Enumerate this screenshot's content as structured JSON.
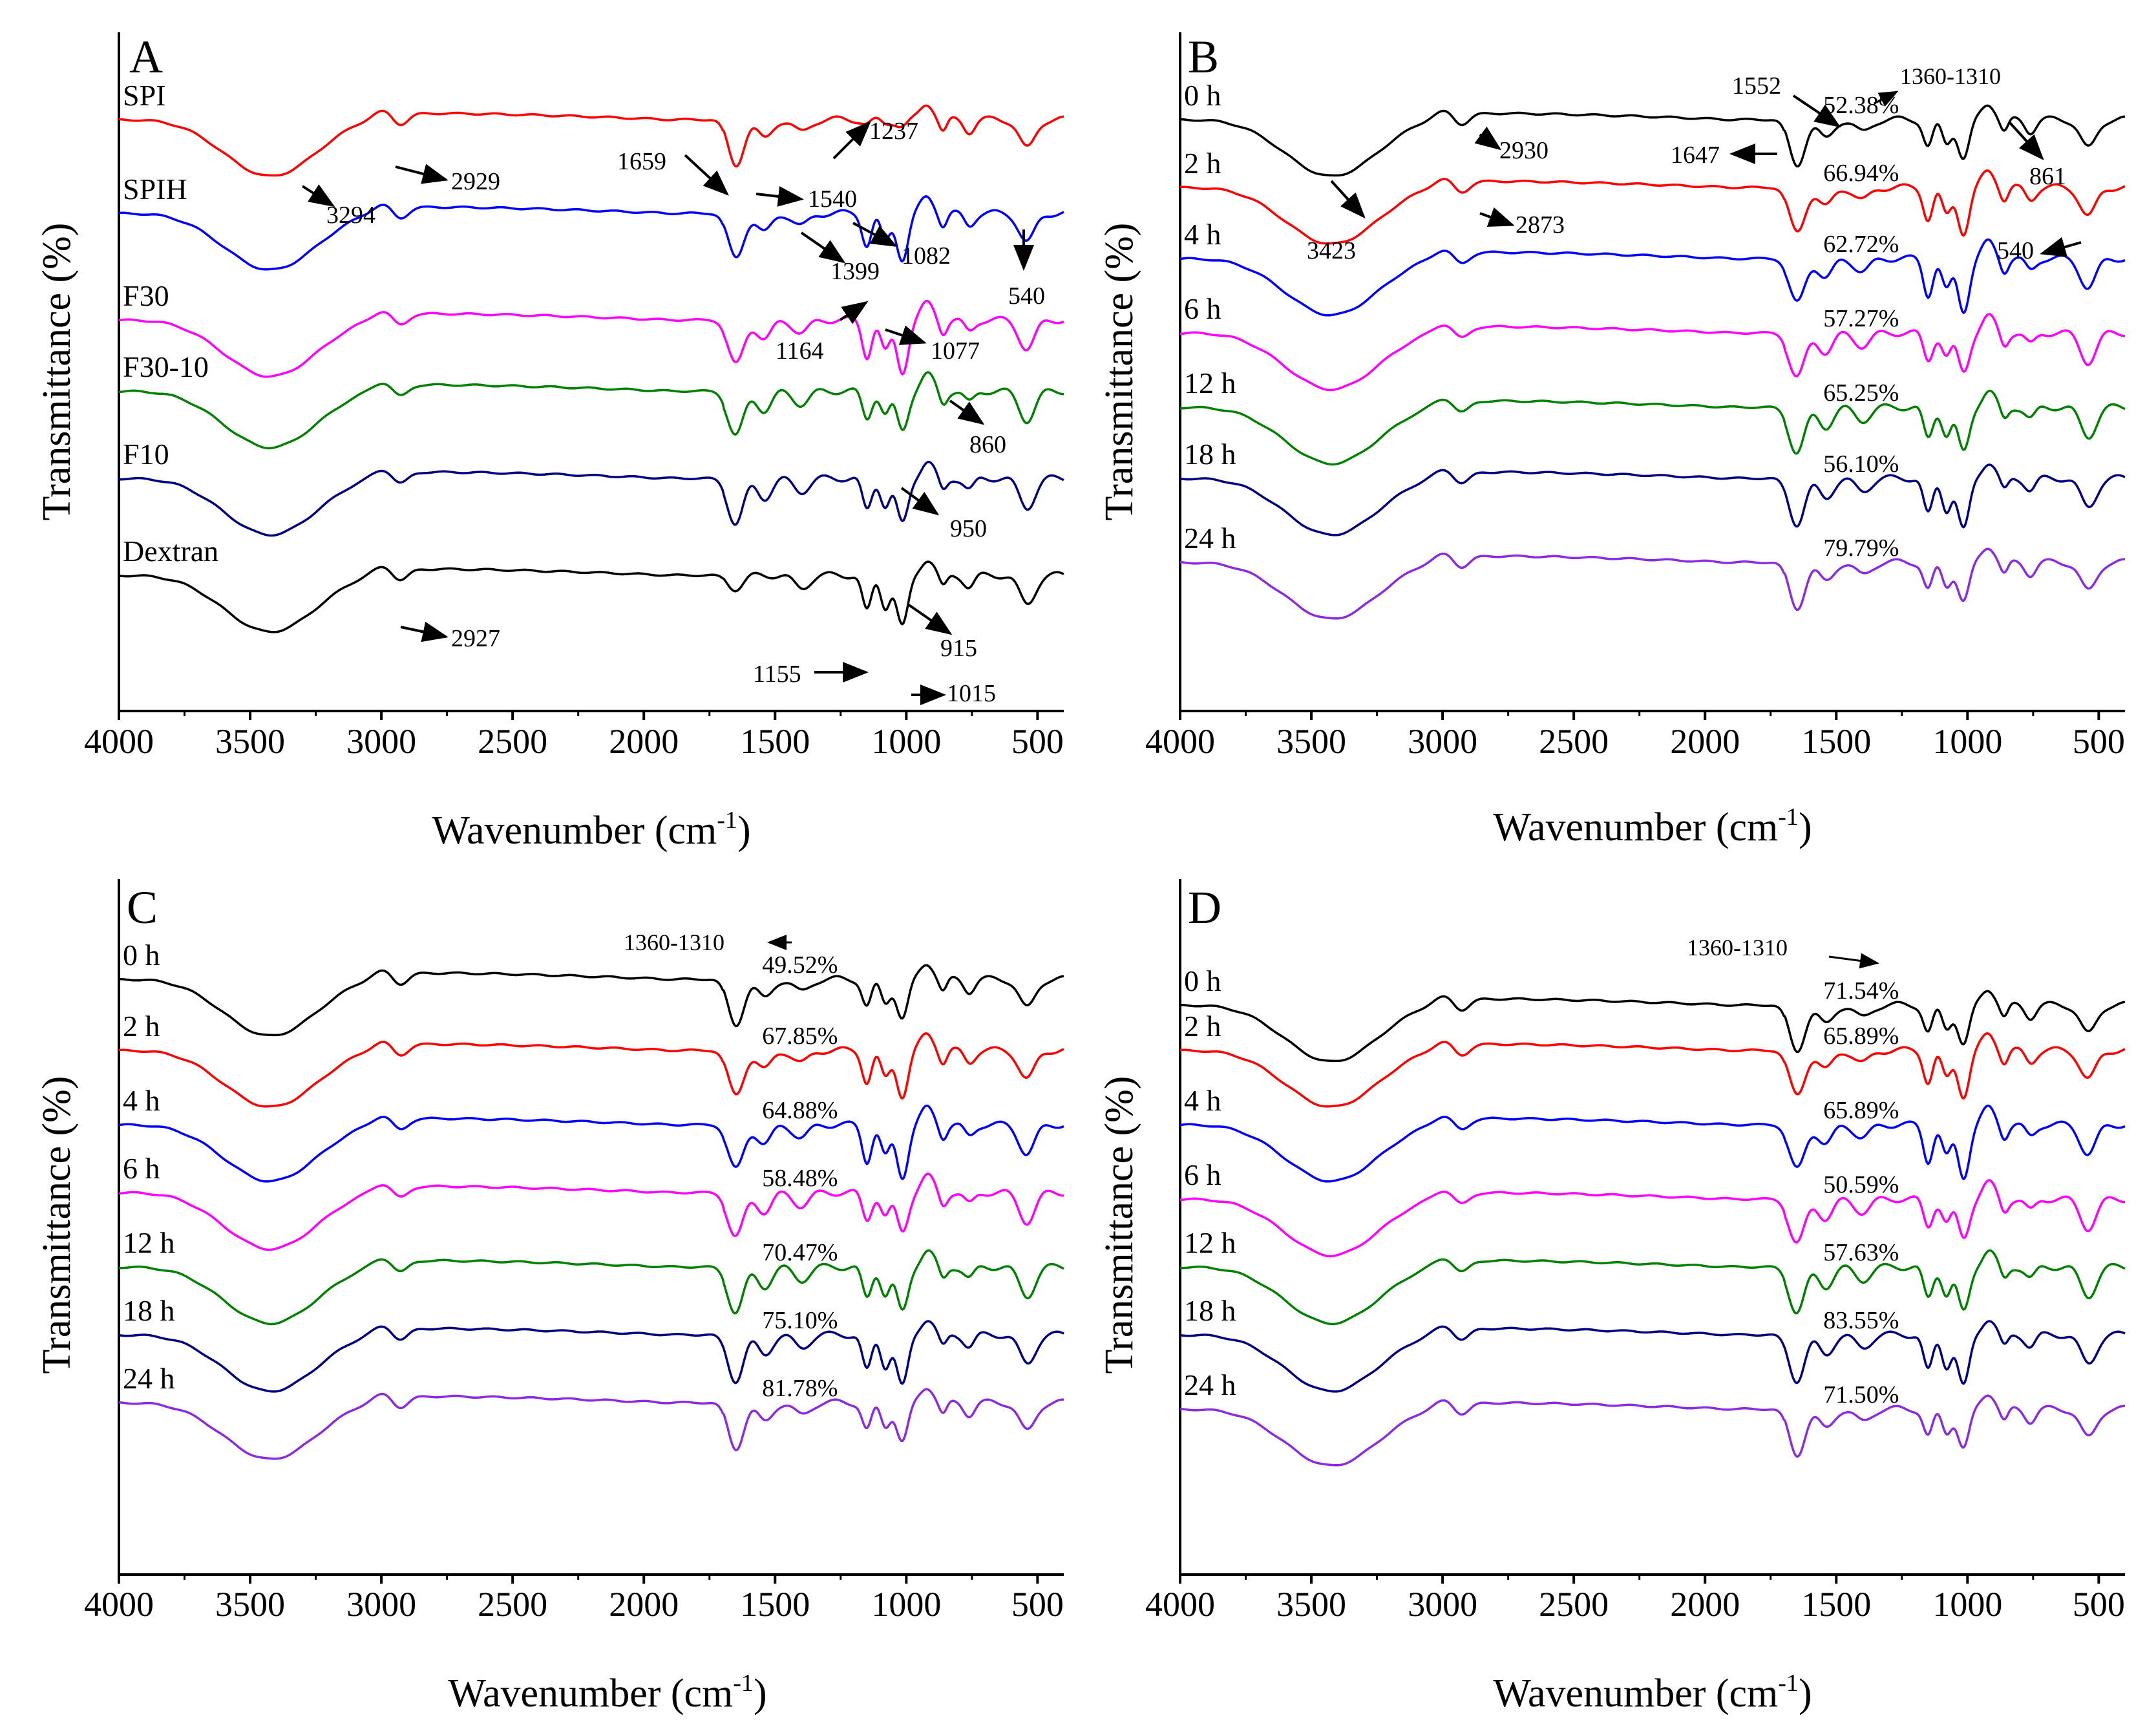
{
  "figure": {
    "panels": [
      {
        "id": "A",
        "xlabel": "Wavenumber (cm",
        "xlabel_sup": "-1",
        "xlabel_tail": ")",
        "ylabel": "Transmittance (%)"
      },
      {
        "id": "B",
        "xlabel": "Wavenumber (cm",
        "xlabel_sup": "-1",
        "xlabel_tail": ")",
        "ylabel": "Transmittance (%)"
      },
      {
        "id": "C",
        "xlabel": "Wavenumber (cm",
        "xlabel_sup": "-1",
        "xlabel_tail": ")",
        "ylabel": "Transmittance (%)"
      },
      {
        "id": "D",
        "xlabel": "Wavenumber (cm",
        "xlabel_sup": "-1",
        "xlabel_tail": ")",
        "ylabel": "Transmittance (%)"
      }
    ]
  },
  "chart_data": [
    {
      "panel": "A",
      "type": "line",
      "xlabel": "Wavenumber (cm-1)",
      "ylabel": "Transmittance (%)",
      "xlim": [
        4000,
        400
      ],
      "xticks": [
        4000,
        3500,
        3000,
        2500,
        2000,
        1500,
        1000,
        500
      ],
      "series": [
        {
          "name": "SPI",
          "color": "#ff0000"
        },
        {
          "name": "SPIH",
          "color": "#0000ff"
        },
        {
          "name": "F30",
          "color": "#ff00ff"
        },
        {
          "name": "F30-10",
          "color": "#008000"
        },
        {
          "name": "F10",
          "color": "#000080"
        },
        {
          "name": "Dextran",
          "color": "#000000"
        }
      ],
      "annotations": [
        "1237",
        "2929",
        "1659",
        "1540",
        "3294",
        "1399",
        "1082",
        "540",
        "1164",
        "1077",
        "860",
        "950",
        "2927",
        "915",
        "1155",
        "1015"
      ]
    },
    {
      "panel": "B",
      "type": "line",
      "xlabel": "Wavenumber (cm-1)",
      "ylabel": "Transmittance (%)",
      "xlim": [
        4000,
        400
      ],
      "xticks": [
        4000,
        3500,
        3000,
        2500,
        2000,
        1500,
        1000,
        500
      ],
      "series": [
        {
          "name": "0 h",
          "color": "#000000",
          "ratio": "52.38%"
        },
        {
          "name": "2 h",
          "color": "#ff0000",
          "ratio": "66.94%"
        },
        {
          "name": "4 h",
          "color": "#0000ff",
          "ratio": "62.72%"
        },
        {
          "name": "6 h",
          "color": "#ff00ff",
          "ratio": "57.27%"
        },
        {
          "name": "12 h",
          "color": "#008000",
          "ratio": "65.25%"
        },
        {
          "name": "18 h",
          "color": "#000080",
          "ratio": "56.10%"
        },
        {
          "name": "24 h",
          "color": "#8a2be2",
          "ratio": "79.79%"
        }
      ],
      "annotations": [
        "1552",
        "1360-1310",
        "2930",
        "1647",
        "861",
        "3423",
        "2873",
        "540"
      ]
    },
    {
      "panel": "C",
      "type": "line",
      "xlabel": "Wavenumber (cm-1)",
      "ylabel": "Transmittance (%)",
      "xlim": [
        4000,
        400
      ],
      "xticks": [
        4000,
        3500,
        3000,
        2500,
        2000,
        1500,
        1000,
        500
      ],
      "series": [
        {
          "name": "0 h",
          "color": "#000000",
          "ratio": "49.52%"
        },
        {
          "name": "2 h",
          "color": "#ff0000",
          "ratio": "67.85%"
        },
        {
          "name": "4 h",
          "color": "#0000ff",
          "ratio": "64.88%"
        },
        {
          "name": "6 h",
          "color": "#ff00ff",
          "ratio": "58.48%"
        },
        {
          "name": "12 h",
          "color": "#008000",
          "ratio": "70.47%"
        },
        {
          "name": "18 h",
          "color": "#000080",
          "ratio": "75.10%"
        },
        {
          "name": "24 h",
          "color": "#8a2be2",
          "ratio": "81.78%"
        }
      ],
      "annotations": [
        "1360-1310"
      ]
    },
    {
      "panel": "D",
      "type": "line",
      "xlabel": "Wavenumber (cm-1)",
      "ylabel": "Transmittance (%)",
      "xlim": [
        4000,
        400
      ],
      "xticks": [
        4000,
        3500,
        3000,
        2500,
        2000,
        1500,
        1000,
        500
      ],
      "series": [
        {
          "name": "0 h",
          "color": "#000000",
          "ratio": "71.54%"
        },
        {
          "name": "2 h",
          "color": "#ff0000",
          "ratio": "65.89%"
        },
        {
          "name": "4 h",
          "color": "#0000ff",
          "ratio": "65.89%"
        },
        {
          "name": "6 h",
          "color": "#ff00ff",
          "ratio": "50.59%"
        },
        {
          "name": "12 h",
          "color": "#008000",
          "ratio": "57.63%"
        },
        {
          "name": "18 h",
          "color": "#000080",
          "ratio": "83.55%"
        },
        {
          "name": "24 h",
          "color": "#8a2be2",
          "ratio": "71.50%"
        }
      ],
      "annotations": [
        "1360-1310"
      ]
    }
  ]
}
